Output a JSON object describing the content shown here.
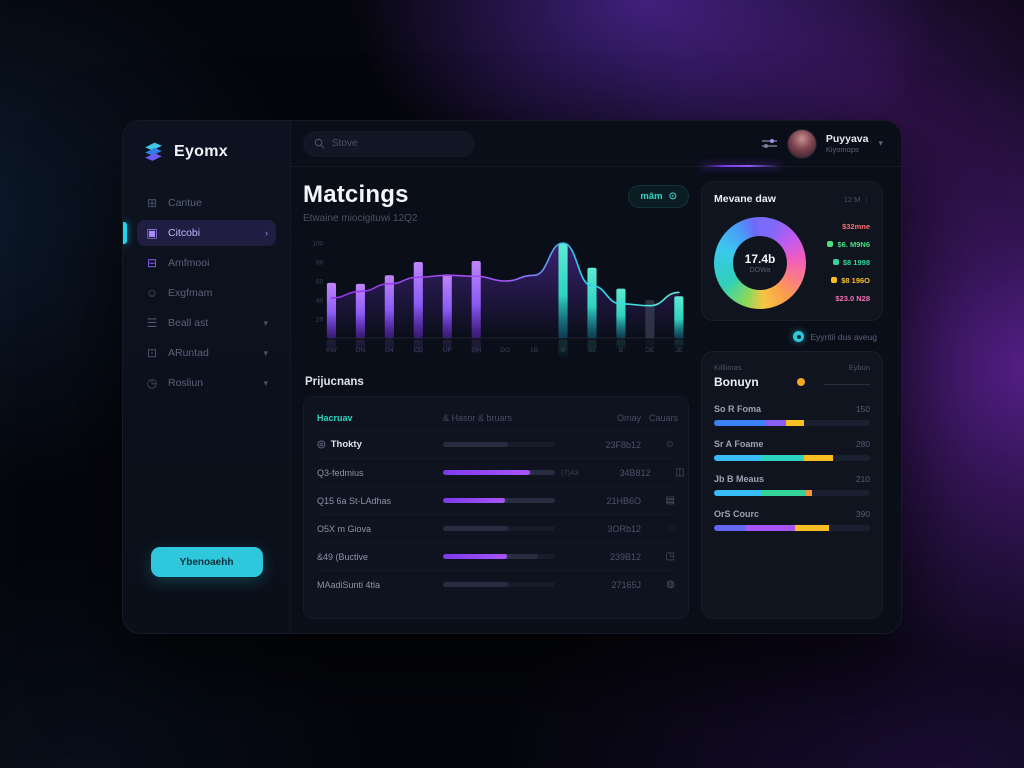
{
  "app": {
    "logo_text": "Eyomx"
  },
  "sidebar": {
    "items": [
      {
        "icon": "grid",
        "glyph": "⊞",
        "label": "Cantue",
        "trailing": "",
        "state": "default"
      },
      {
        "icon": "chat",
        "glyph": "▣",
        "label": "Citcobi",
        "trailing": "›",
        "state": "selected"
      },
      {
        "icon": "card",
        "glyph": "⊟",
        "label": "Amfmooi",
        "trailing": "",
        "state": "accent"
      },
      {
        "icon": "user",
        "glyph": "☺",
        "label": "Exgfmam",
        "trailing": "",
        "state": "default"
      },
      {
        "icon": "layers",
        "glyph": "☰",
        "label": "Beall ast",
        "trailing": "▾",
        "state": "default"
      },
      {
        "icon": "box",
        "glyph": "⊡",
        "label": "ARuntad",
        "trailing": "▾",
        "state": "default"
      },
      {
        "icon": "clock",
        "glyph": "◷",
        "label": "Rosliun",
        "trailing": "▾",
        "state": "default"
      }
    ],
    "cta_label": "Ybenoaehh"
  },
  "header": {
    "search_placeholder": "Stove",
    "user": {
      "name": "Puyyava",
      "role": "Kiyomops"
    }
  },
  "main": {
    "title": "Matcings",
    "subtitle": "Etwaine miocigituwi 12Q2",
    "pill_label": "mâm",
    "pill_icon": "⊙"
  },
  "chart_data": [
    {
      "type": "bar",
      "title": "",
      "categories": [
        "KW",
        "DN",
        "O4",
        "CD",
        "UF",
        "GH",
        "DO",
        "1B",
        "B",
        "SL",
        "B",
        "DE",
        "JE"
      ],
      "values": [
        58,
        57,
        66,
        80,
        67,
        81,
        0,
        0,
        100,
        74,
        52,
        40,
        44
      ],
      "bar_colors": [
        "purple",
        "purple",
        "purple",
        "purple",
        "purple",
        "purple",
        "none",
        "none",
        "teal",
        "teal",
        "teal",
        "dim",
        "teal"
      ],
      "line_series": {
        "name": "trend",
        "points": [
          [
            0,
            42
          ],
          [
            1,
            49
          ],
          [
            2,
            57
          ],
          [
            3,
            64
          ],
          [
            4,
            66
          ],
          [
            5,
            65
          ],
          [
            6,
            60
          ],
          [
            7,
            66
          ],
          [
            8,
            100
          ],
          [
            9,
            55
          ],
          [
            10,
            36
          ],
          [
            11,
            34
          ],
          [
            12,
            48
          ]
        ]
      },
      "ylabels": [
        "100",
        "80",
        "60",
        "40",
        "20"
      ],
      "yvalues": [
        100,
        80,
        60,
        40,
        20
      ],
      "ylim": [
        0,
        100
      ],
      "grid": false,
      "legend_position": "none",
      "colors": {
        "purple_top": "#c084fc",
        "purple_bottom": "#6d28d9",
        "teal_top": "#5eead4",
        "teal_bottom": "#0e7490",
        "dim": "#475066",
        "line_start": "#9333ea",
        "line_mid": "#a855f7",
        "line_end": "#22d3ee",
        "area": "#7c3aed",
        "axis_text": "#3a4254"
      }
    },
    {
      "type": "pie",
      "donut": true,
      "title": "Mevane daw",
      "menu_label": "12 M",
      "center_value": "17.4b",
      "center_label": "DOWa",
      "segments": [
        {
          "color": "#7c6afa",
          "pct": 10
        },
        {
          "color": "#c05af0",
          "pct": 9
        },
        {
          "color": "#ef5cc0",
          "pct": 8
        },
        {
          "color": "#fa7a8a",
          "pct": 8
        },
        {
          "color": "#fb9d4d",
          "pct": 9
        },
        {
          "color": "#f6c643",
          "pct": 9
        },
        {
          "color": "#8bd95a",
          "pct": 5
        },
        {
          "color": "#2fd0b8",
          "pct": 16
        },
        {
          "color": "#3cc8ee",
          "pct": 14
        },
        {
          "color": "#4a9af8",
          "pct": 7
        },
        {
          "color": "#6d6afa",
          "pct": 5
        }
      ],
      "legend": [
        {
          "color": "#f87171",
          "swatch": false,
          "text": "$32mne"
        },
        {
          "color": "#4ade80",
          "swatch": true,
          "text": "$6. M9N6"
        },
        {
          "color": "#34d399",
          "swatch": true,
          "text": "$8 1998"
        },
        {
          "color": "#fbbf24",
          "swatch": true,
          "text": "$8 196O"
        },
        {
          "color": "#f472b6",
          "swatch": false,
          "text": "$23.0 N28"
        }
      ]
    }
  ],
  "projections": {
    "title": "Prijucnans",
    "columns": [
      "Hacruav",
      "& Hasor & bruars",
      "Omay",
      "Cauars"
    ],
    "rows": [
      {
        "prefix_icon": "◎",
        "emphasis": true,
        "name": "Thokty",
        "bar_pct": 0,
        "gray_pct": 58,
        "suffix": "",
        "value": "23F8b12",
        "action_icon": "☺"
      },
      {
        "prefix_icon": "",
        "emphasis": false,
        "name": "Q3-fedmius",
        "bar_pct": 78,
        "gray_pct": 100,
        "suffix": "(7)43",
        "value": "34B812",
        "action_icon": "◫"
      },
      {
        "prefix_icon": "",
        "emphasis": false,
        "name": "Q15 6a St-LAdhas",
        "bar_pct": 55,
        "gray_pct": 100,
        "suffix": "",
        "value": "21HB6O",
        "action_icon": "▤"
      },
      {
        "prefix_icon": "",
        "emphasis": false,
        "name": "O5X m Giova",
        "bar_pct": 0,
        "gray_pct": 58,
        "suffix": "",
        "value": "3ORb12",
        "action_icon": "◌"
      },
      {
        "prefix_icon": "",
        "emphasis": false,
        "name": "&49 (Buctive",
        "bar_pct": 57,
        "gray_pct": 85,
        "suffix": "",
        "value": "239B12",
        "action_icon": "◳"
      },
      {
        "prefix_icon": "",
        "emphasis": false,
        "name": "MAadiSunti 4tla",
        "bar_pct": 0,
        "gray_pct": 58,
        "suffix": "",
        "value": "27165J",
        "action_icon": "◍"
      }
    ]
  },
  "activity_note": {
    "text": "Eyyritii dus aveug"
  },
  "bonus_card": {
    "eyebrow_left": "Killlimas",
    "eyebrow_right": "Eybun",
    "title": "Bonuyn",
    "dot_color": "#f5a623",
    "rows": [
      {
        "label": "So R Foma",
        "value": "150",
        "segments": [
          {
            "color": "#3b82f6",
            "pct": 33
          },
          {
            "color": "#8b5cf6",
            "pct": 13
          },
          {
            "color": "#fbbf24",
            "pct": 12
          }
        ]
      },
      {
        "label": "Sr A Foame",
        "value": "280",
        "segments": [
          {
            "color": "#38bdf8",
            "pct": 30
          },
          {
            "color": "#2dd4bf",
            "pct": 28
          },
          {
            "color": "#fbbf24",
            "pct": 18
          }
        ]
      },
      {
        "label": "Jb B Meaus",
        "value": "210",
        "segments": [
          {
            "color": "#38bdf8",
            "pct": 30
          },
          {
            "color": "#34d399",
            "pct": 29
          },
          {
            "color": "#fb923c",
            "pct": 4
          }
        ]
      },
      {
        "label": "OrS Courc",
        "value": "390",
        "segments": [
          {
            "color": "#6366f1",
            "pct": 20
          },
          {
            "color": "#a855f7",
            "pct": 32
          },
          {
            "color": "#fbbf24",
            "pct": 22
          }
        ]
      }
    ]
  }
}
